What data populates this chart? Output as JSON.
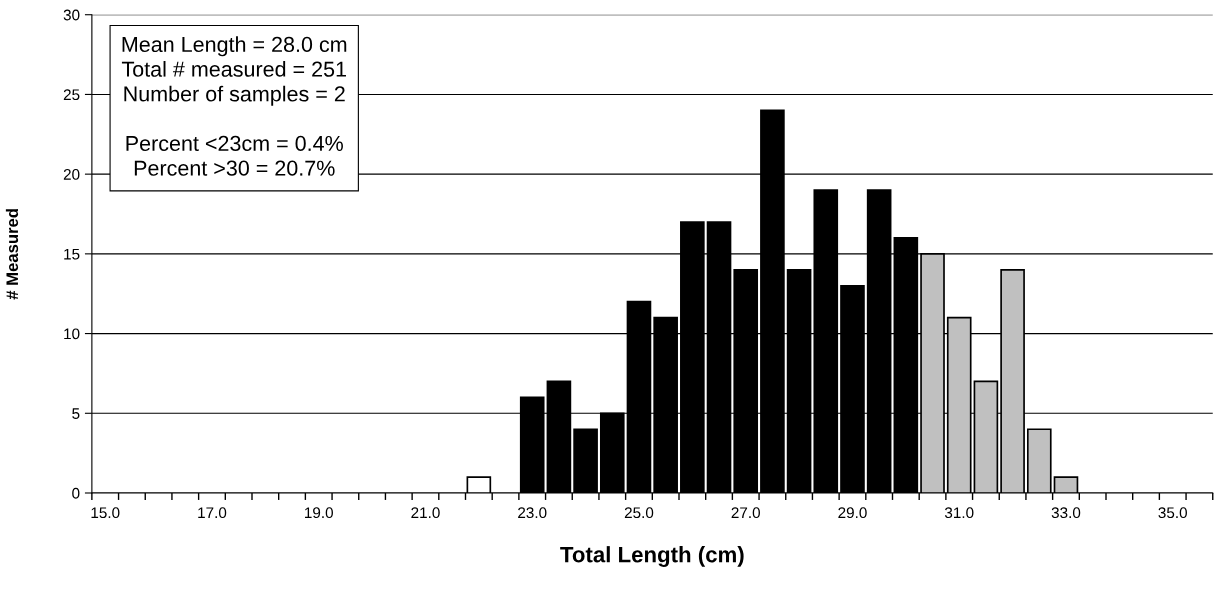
{
  "chart_data": {
    "type": "bar",
    "xlabel": "Total Length (cm)",
    "ylabel": "# Measured",
    "categories": [
      "15.0",
      null,
      null,
      null,
      "17.0",
      null,
      null,
      null,
      "19.0",
      null,
      null,
      null,
      "21.0",
      null,
      null,
      null,
      "23.0",
      null,
      null,
      null,
      "25.0",
      null,
      null,
      null,
      "27.0",
      null,
      null,
      null,
      "29.0",
      null,
      null,
      null,
      "31.0",
      null,
      null,
      null,
      "33.0",
      null,
      null,
      null,
      "35.0",
      null
    ],
    "values": [
      0,
      0,
      0,
      0,
      0,
      0,
      0,
      0,
      0,
      0,
      0,
      0,
      0,
      0,
      1,
      0,
      6,
      7,
      4,
      5,
      12,
      11,
      17,
      17,
      14,
      24,
      14,
      19,
      13,
      19,
      16,
      15,
      11,
      7,
      14,
      4,
      1,
      0,
      0,
      0,
      0,
      0
    ],
    "colors": [
      "#ffffff",
      "#ffffff",
      "#ffffff",
      "#ffffff",
      "#ffffff",
      "#ffffff",
      "#ffffff",
      "#ffffff",
      "#ffffff",
      "#ffffff",
      "#ffffff",
      "#ffffff",
      "#ffffff",
      "#ffffff",
      "#ffffff",
      "#ffffff",
      "#000000",
      "#000000",
      "#000000",
      "#000000",
      "#000000",
      "#000000",
      "#000000",
      "#000000",
      "#000000",
      "#000000",
      "#000000",
      "#000000",
      "#000000",
      "#000000",
      "#000000",
      "#c0c0c0",
      "#c0c0c0",
      "#c0c0c0",
      "#c0c0c0",
      "#c0c0c0",
      "#c0c0c0",
      "#c0c0c0",
      "#c0c0c0",
      "#c0c0c0",
      "#c0c0c0",
      "#c0c0c0"
    ],
    "ylim": [
      0,
      30
    ],
    "yticks": [
      0,
      5,
      10,
      15,
      20,
      25,
      30
    ],
    "grid": "y",
    "annotations": [
      "Mean Length = 28.0 cm\nTotal # measured = 251\nNumber of samples = 2\n\nPercent <23cm = 0.4%\nPercent >30 = 20.7%"
    ]
  }
}
